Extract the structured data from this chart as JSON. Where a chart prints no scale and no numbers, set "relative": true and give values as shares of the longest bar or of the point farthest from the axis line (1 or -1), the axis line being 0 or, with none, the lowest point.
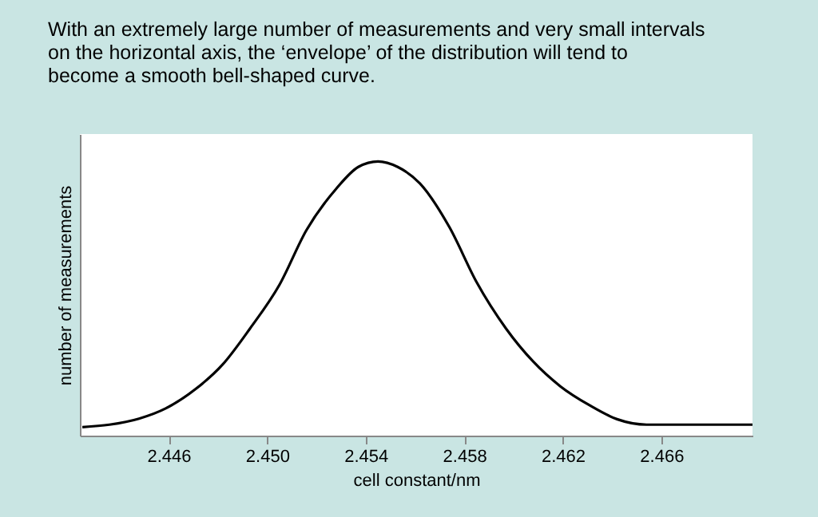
{
  "chart_data": {
    "type": "line",
    "title": "With an extremely large number of measurements and very small intervals on the horizontal axis, the ‘envelope’ of the distribution will tend to become a smooth bell-shaped curve.",
    "xlabel": "cell constant/nm",
    "ylabel": "number of measurements",
    "relative": true,
    "grid": false,
    "marker": "none",
    "line_style": "solid",
    "xlim": [
      2.4424,
      2.4697
    ],
    "xticks": [
      {
        "value": 2.446,
        "label": "2.446"
      },
      {
        "value": 2.45,
        "label": "2.450"
      },
      {
        "value": 2.454,
        "label": "2.454"
      },
      {
        "value": 2.458,
        "label": "2.458"
      },
      {
        "value": 2.462,
        "label": "2.462"
      },
      {
        "value": 2.466,
        "label": "2.466"
      }
    ],
    "series": [
      {
        "color": "#000000",
        "x": [
          2.4425,
          2.4436,
          2.4448,
          2.4459,
          2.4471,
          2.4482,
          2.4493,
          2.4505,
          2.4516,
          2.4528,
          2.4537,
          2.4545,
          2.4553,
          2.4562,
          2.4574,
          2.4585,
          2.4597,
          2.4608,
          2.4619,
          2.4631,
          2.4642,
          2.4654,
          2.4665,
          2.4697
        ],
        "values": [
          0.031,
          0.04,
          0.062,
          0.1,
          0.17,
          0.26,
          0.39,
          0.55,
          0.75,
          0.9,
          0.98,
          1,
          0.98,
          0.92,
          0.76,
          0.56,
          0.39,
          0.27,
          0.18,
          0.11,
          0.06,
          0.04,
          0.04,
          0.04
        ]
      }
    ]
  }
}
